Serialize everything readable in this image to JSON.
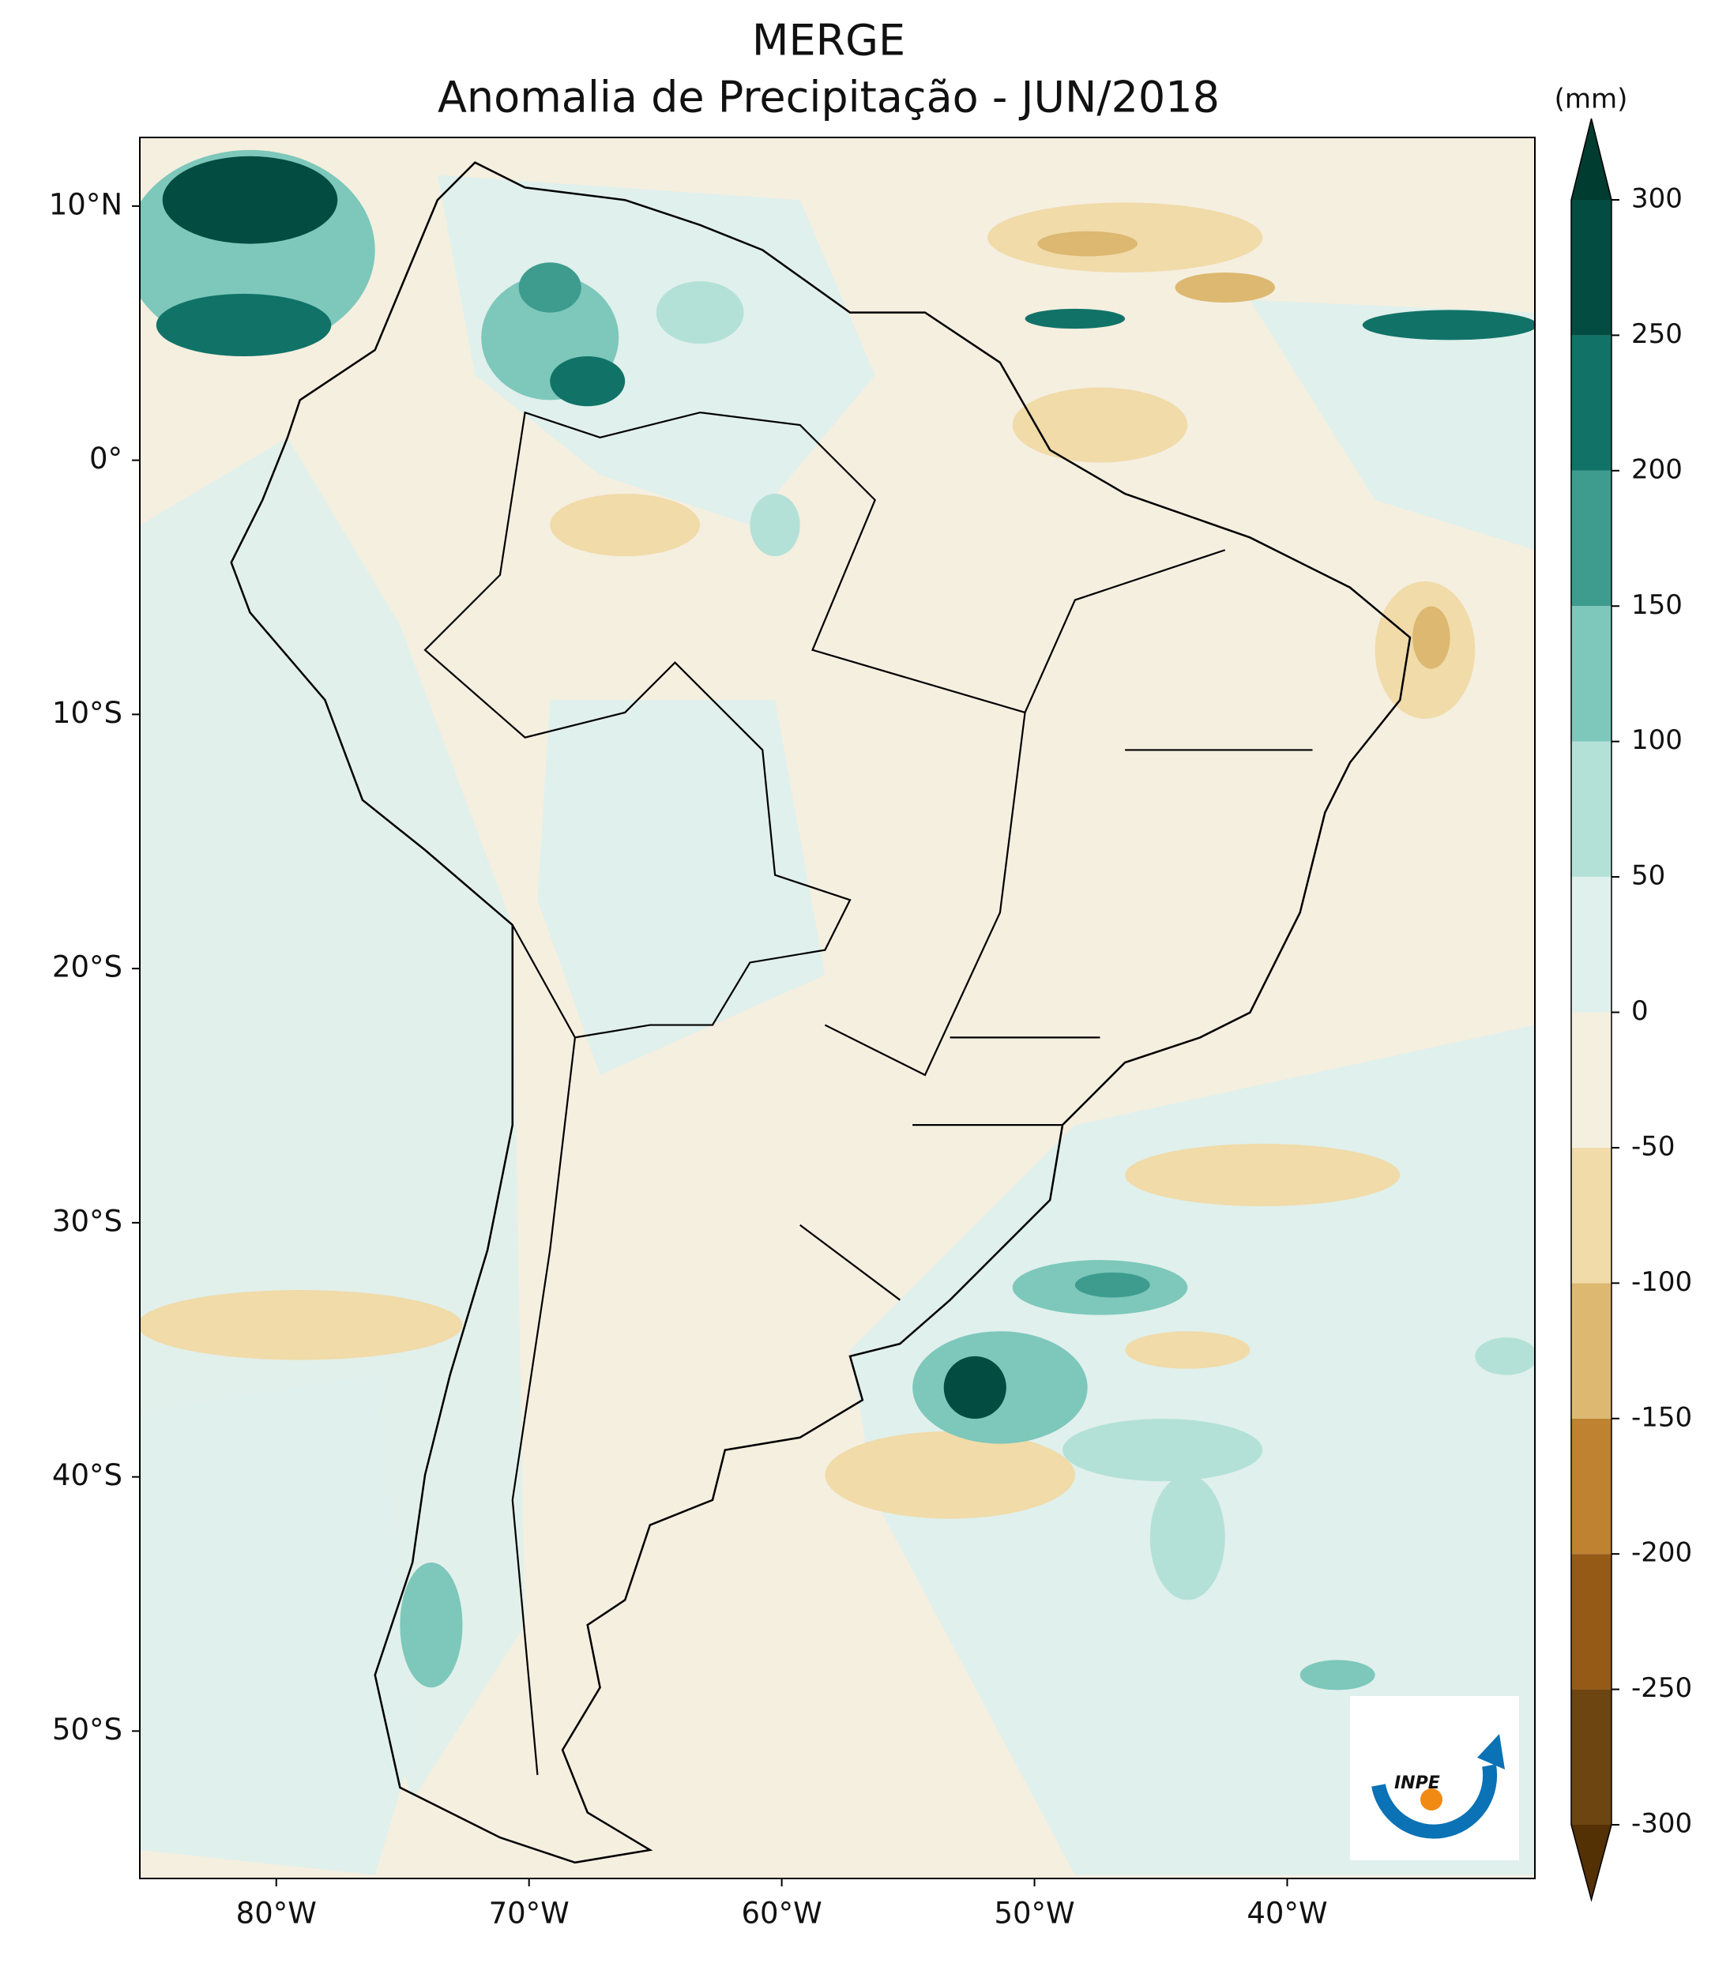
{
  "chart_data": {
    "type": "contour-map",
    "title": "MERGE",
    "subtitle": "Anomalia de Precipitação - JUN/2018",
    "xlim": [
      -85.4,
      -30.2
    ],
    "ylim": [
      -55.8,
      12.7
    ],
    "xticks": [
      {
        "value": -80,
        "label": "80°W"
      },
      {
        "value": -70,
        "label": "70°W"
      },
      {
        "value": -60,
        "label": "60°W"
      },
      {
        "value": -50,
        "label": "50°W"
      },
      {
        "value": -40,
        "label": "40°W"
      }
    ],
    "yticks": [
      {
        "value": 10,
        "label": "10°N"
      },
      {
        "value": 0,
        "label": "0°"
      },
      {
        "value": -10,
        "label": "10°S"
      },
      {
        "value": -20,
        "label": "20°S"
      },
      {
        "value": -30,
        "label": "30°S"
      },
      {
        "value": -40,
        "label": "40°S"
      },
      {
        "value": -50,
        "label": "50°S"
      }
    ],
    "colorbar": {
      "label": "(mm)",
      "ticks": [
        -300,
        -250,
        -200,
        -150,
        -100,
        -50,
        0,
        50,
        100,
        150,
        200,
        250,
        300
      ],
      "colors": [
        "#6d4510",
        "#965a17",
        "#bf8230",
        "#dcb871",
        "#f0dba9",
        "#f5efe0",
        "#e0f0ec",
        "#b3e1d8",
        "#7dc8bb",
        "#3e9c8f",
        "#117368",
        "#024c41"
      ],
      "extend_colors": [
        "#543005",
        "#003c30"
      ]
    }
  },
  "logo": {
    "text": "INPE"
  }
}
